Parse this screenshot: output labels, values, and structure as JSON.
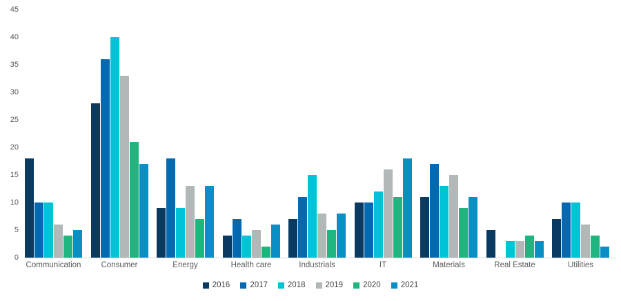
{
  "chart_data": {
    "type": "bar",
    "title": "",
    "xlabel": "",
    "ylabel": "",
    "ylim": [
      0,
      45
    ],
    "ytick_step": 5,
    "yticks": [
      0,
      5,
      10,
      15,
      20,
      25,
      30,
      35,
      40,
      45
    ],
    "grid": false,
    "legend_position": "bottom",
    "axis_line_color": "#d9d9d9",
    "tick_text_color": "#595959",
    "legend_text_color": "#404040",
    "categories": [
      "Communication",
      "Consumer",
      "Energy",
      "Health care",
      "Industrials",
      "IT",
      "Materials",
      "Real Estate",
      "Utilities"
    ],
    "series": [
      {
        "name": "2016",
        "color": "#0a3a60",
        "values": [
          18,
          28,
          9,
          4,
          7,
          10,
          11,
          5,
          7
        ]
      },
      {
        "name": "2017",
        "color": "#0569b1",
        "values": [
          10,
          36,
          18,
          7,
          11,
          10,
          17,
          0,
          10
        ]
      },
      {
        "name": "2018",
        "color": "#00c4d6",
        "values": [
          10,
          40,
          9,
          4,
          15,
          12,
          13,
          3,
          10
        ]
      },
      {
        "name": "2019",
        "color": "#b2b7b7",
        "values": [
          6,
          33,
          13,
          5,
          8,
          16,
          15,
          3,
          6
        ]
      },
      {
        "name": "2020",
        "color": "#1fb57e",
        "values": [
          4,
          21,
          7,
          2,
          5,
          11,
          9,
          4,
          4
        ]
      },
      {
        "name": "2021",
        "color": "#0a8fc4",
        "values": [
          5,
          17,
          13,
          6,
          8,
          18,
          11,
          3,
          2
        ]
      }
    ]
  }
}
